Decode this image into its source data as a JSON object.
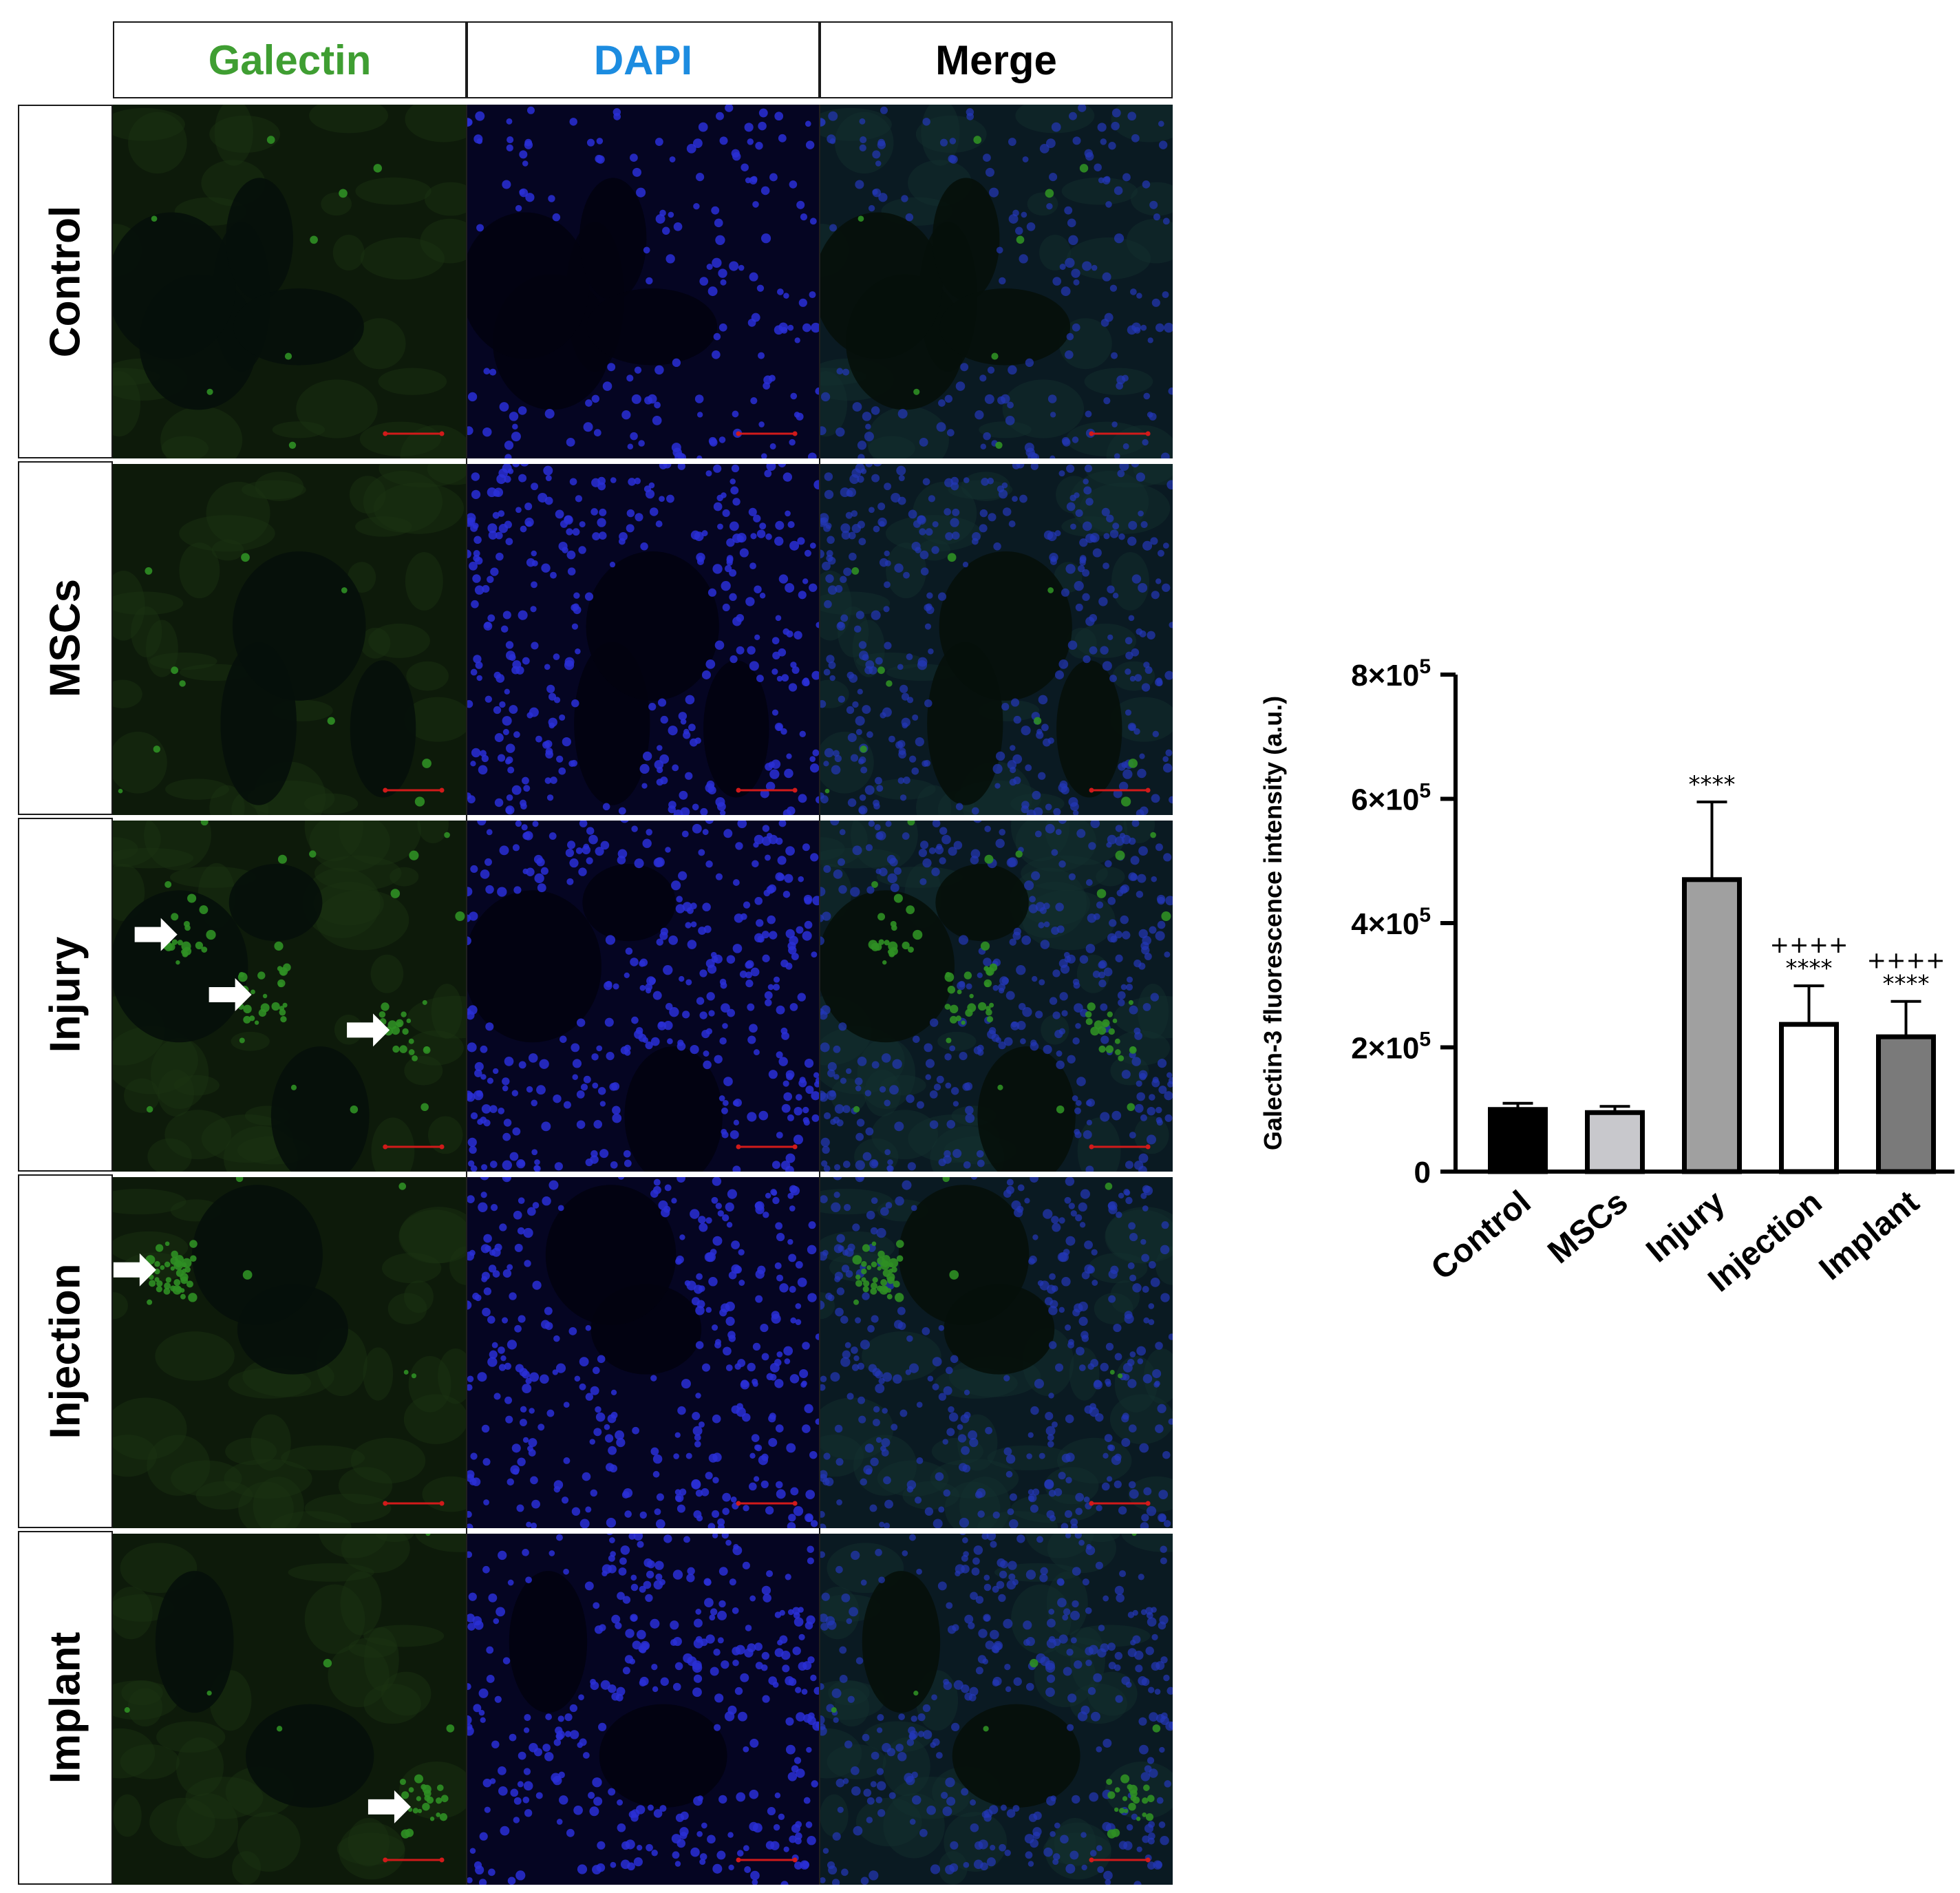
{
  "figure": {
    "column_headers": [
      {
        "label": "Galectin",
        "color": "#3f9e32"
      },
      {
        "label": "DAPI",
        "color": "#1c8ce0"
      },
      {
        "label": "Merge",
        "color": "#000000"
      }
    ],
    "row_labels": [
      "Control",
      "MSCs",
      "Injury",
      "Injection",
      "Implant"
    ],
    "panel_colors": {
      "galectin_bg": "#0d1a0a",
      "galectin_cell": "#2f8f24",
      "dapi_bg": "#050522",
      "dapi_cell": "#2a2fd6",
      "merge_bg": "#0a1a22",
      "scale_bar": "#d11a1a",
      "arrow": "#ffffff"
    },
    "galectin_intensity_level": [
      0.1,
      0.12,
      0.95,
      0.55,
      0.35
    ],
    "arrows_per_row": [
      0,
      0,
      3,
      1,
      1
    ]
  },
  "chart_data": {
    "type": "bar",
    "categories": [
      "Control",
      "MSCs",
      "Injury",
      "Injection",
      "Implant"
    ],
    "values": [
      100000,
      95000,
      470000,
      237000,
      217000
    ],
    "error": [
      10000,
      10000,
      125000,
      62000,
      57000
    ],
    "bar_colors": [
      "#000000",
      "#c8c8cc",
      "#a0a0a0",
      "#ffffff",
      "#7a7a7a"
    ],
    "ylabel": "Galectin-3 fluorescence intensity (a.u.)",
    "xlabel": "",
    "ylim": [
      0,
      800000
    ],
    "yticks": [
      0,
      200000,
      400000,
      600000,
      800000
    ],
    "ytick_labels": [
      {
        "base": "0",
        "exp": ""
      },
      {
        "base": "2×10",
        "exp": "5"
      },
      {
        "base": "4×10",
        "exp": "5"
      },
      {
        "base": "6×10",
        "exp": "5"
      },
      {
        "base": "8×10",
        "exp": "5"
      }
    ],
    "annotations": [
      {
        "category": "Injury",
        "lines": [
          "****"
        ]
      },
      {
        "category": "Injection",
        "lines": [
          "++++",
          "****"
        ]
      },
      {
        "category": "Implant",
        "lines": [
          "++++",
          "****"
        ]
      }
    ]
  }
}
